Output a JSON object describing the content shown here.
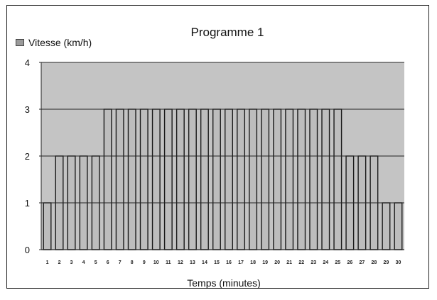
{
  "chart_data": {
    "type": "bar",
    "title": "Programme 1",
    "xlabel": "Temps (minutes)",
    "ylabel": "",
    "legend": {
      "label": "Vitesse (km/h)",
      "placement": "top-left"
    },
    "categories": [
      "1",
      "2",
      "3",
      "4",
      "5",
      "6",
      "7",
      "8",
      "9",
      "10",
      "11",
      "12",
      "13",
      "14",
      "15",
      "16",
      "17",
      "18",
      "19",
      "20",
      "21",
      "22",
      "23",
      "24",
      "25",
      "26",
      "27",
      "28",
      "29",
      "30"
    ],
    "series": [
      {
        "name": "Vitesse (km/h)",
        "values": [
          1,
          2,
          2,
          2,
          2,
          3,
          3,
          3,
          3,
          3,
          3,
          3,
          3,
          3,
          3,
          3,
          3,
          3,
          3,
          3,
          3,
          3,
          3,
          3,
          3,
          2,
          2,
          2,
          1,
          1
        ]
      }
    ],
    "yticks": [
      "0",
      "1",
      "2",
      "3",
      "4"
    ],
    "ylim": [
      0,
      4
    ],
    "grid": true,
    "colors": {
      "plot_bg": "#c4c4c4",
      "bar_fill": "#bdbdbd",
      "bar_stroke": "#1a1a1a",
      "grid": "#222222"
    }
  }
}
